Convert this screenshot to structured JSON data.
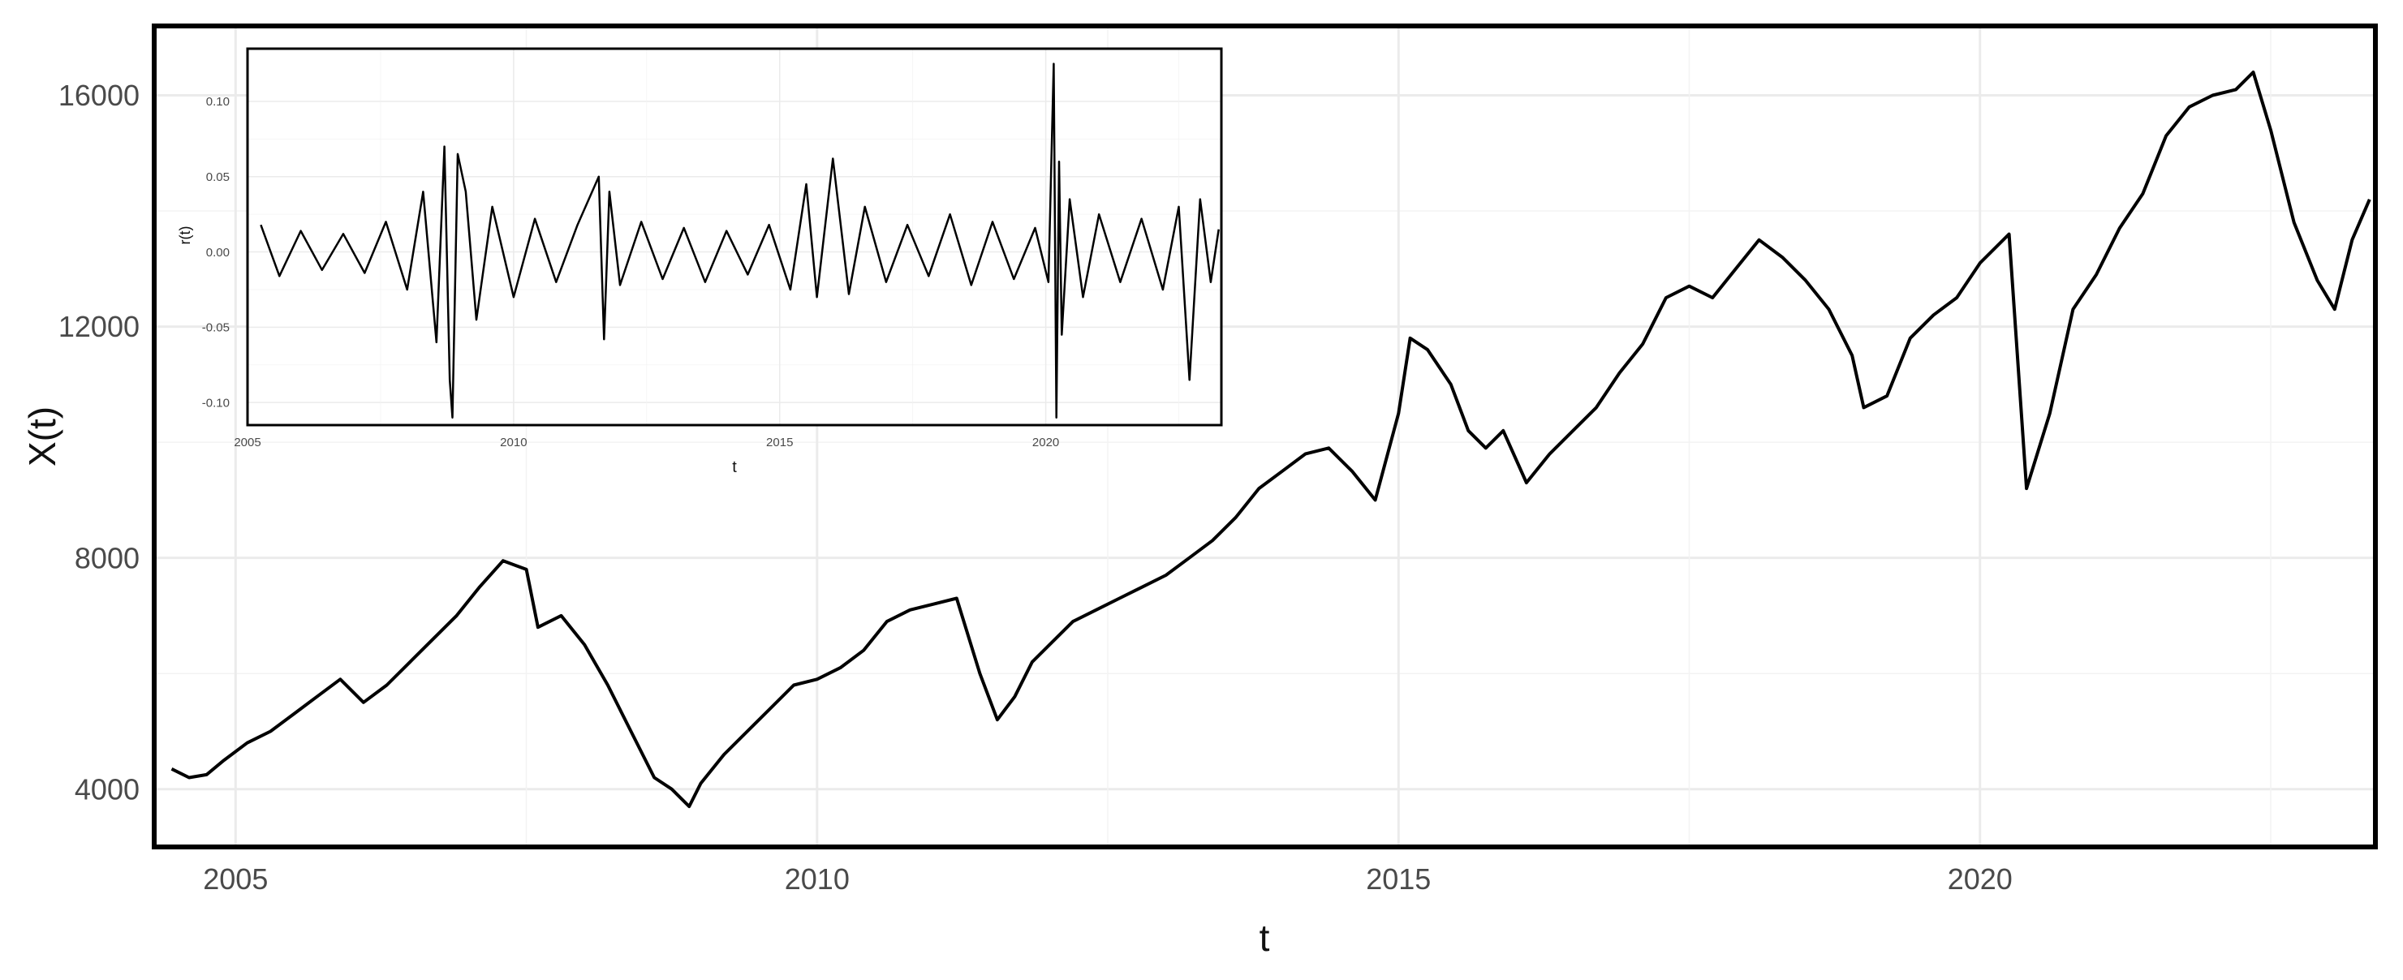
{
  "chart_data": [
    {
      "type": "line",
      "xlabel": "t",
      "ylabel": "X(t)",
      "xlim": [
        2004.3,
        2023.4
      ],
      "ylim": [
        3000,
        17200
      ],
      "xticks": [
        {
          "value": 2005,
          "label": "2005"
        },
        {
          "value": 2010,
          "label": "2010"
        },
        {
          "value": 2015,
          "label": "2015"
        },
        {
          "value": 2020,
          "label": "2020"
        }
      ],
      "yticks": [
        {
          "value": 4000,
          "label": "4000"
        },
        {
          "value": 8000,
          "label": "8000"
        },
        {
          "value": 12000,
          "label": "12000"
        },
        {
          "value": 16000,
          "label": "16000"
        }
      ],
      "grid": true,
      "series": [
        {
          "x": [
            2004.45,
            2004.6,
            2004.75,
            2004.9,
            2005.1,
            2005.3,
            2005.5,
            2005.7,
            2005.9,
            2006.1,
            2006.3,
            2006.5,
            2006.7,
            2006.9,
            2007.1,
            2007.3,
            2007.5,
            2007.6,
            2007.8,
            2008.0,
            2008.2,
            2008.4,
            2008.6,
            2008.75,
            2008.9,
            2009.0,
            2009.2,
            2009.4,
            2009.6,
            2009.8,
            2010.0,
            2010.2,
            2010.4,
            2010.6,
            2010.8,
            2011.0,
            2011.2,
            2011.4,
            2011.55,
            2011.7,
            2011.85,
            2012.0,
            2012.2,
            2012.4,
            2012.6,
            2012.8,
            2013.0,
            2013.2,
            2013.4,
            2013.6,
            2013.8,
            2014.0,
            2014.2,
            2014.4,
            2014.6,
            2014.8,
            2015.0,
            2015.1,
            2015.25,
            2015.45,
            2015.6,
            2015.75,
            2015.9,
            2016.1,
            2016.3,
            2016.5,
            2016.7,
            2016.9,
            2017.1,
            2017.3,
            2017.5,
            2017.7,
            2017.9,
            2018.1,
            2018.3,
            2018.5,
            2018.7,
            2018.9,
            2019.0,
            2019.2,
            2019.4,
            2019.6,
            2019.8,
            2020.0,
            2020.15,
            2020.25,
            2020.4,
            2020.6,
            2020.8,
            2021.0,
            2021.2,
            2021.4,
            2021.6,
            2021.8,
            2022.0,
            2022.2,
            2022.35,
            2022.5,
            2022.7,
            2022.9,
            2023.05,
            2023.2,
            2023.35
          ],
          "y": [
            4350,
            4200,
            4250,
            4500,
            4800,
            5000,
            5300,
            5600,
            5900,
            5500,
            5800,
            6200,
            6600,
            7000,
            7500,
            7950,
            7800,
            6800,
            7000,
            6500,
            5800,
            5000,
            4200,
            4000,
            3700,
            4100,
            4600,
            5000,
            5400,
            5800,
            5900,
            6100,
            6400,
            6900,
            7100,
            7200,
            7300,
            6000,
            5200,
            5600,
            6200,
            6500,
            6900,
            7100,
            7300,
            7500,
            7700,
            8000,
            8300,
            8700,
            9200,
            9500,
            9800,
            9900,
            9500,
            9000,
            10500,
            11800,
            11600,
            11000,
            10200,
            9900,
            10200,
            9300,
            9800,
            10200,
            10600,
            11200,
            11700,
            12500,
            12700,
            12500,
            13000,
            13500,
            13200,
            12800,
            12300,
            11500,
            10600,
            10800,
            11800,
            12200,
            12500,
            13100,
            13400,
            13600,
            9200,
            10500,
            12300,
            12900,
            13700,
            14300,
            15300,
            15800,
            16000,
            16100,
            16400,
            15400,
            13800,
            12800,
            12300,
            13500,
            14200
          ]
        }
      ]
    },
    {
      "type": "line",
      "xlabel": "t",
      "ylabel": "r(t)",
      "xlim": [
        2005,
        2023.3
      ],
      "ylim": [
        -0.115,
        0.135
      ],
      "xticks": [
        {
          "value": 2005,
          "label": "2005"
        },
        {
          "value": 2010,
          "label": "2010"
        },
        {
          "value": 2015,
          "label": "2015"
        },
        {
          "value": 2020,
          "label": "2020"
        }
      ],
      "yticks": [
        {
          "value": 0.1,
          "label": "0.10"
        },
        {
          "value": 0.05,
          "label": "0.05"
        },
        {
          "value": 0.0,
          "label": "0.00"
        },
        {
          "value": -0.05,
          "label": "-0.05"
        },
        {
          "value": -0.1,
          "label": "-0.10"
        }
      ],
      "grid": true,
      "series": [
        {
          "x": [
            2005.25,
            2005.6,
            2006.0,
            2006.4,
            2006.8,
            2007.2,
            2007.6,
            2008.0,
            2008.3,
            2008.55,
            2008.7,
            2008.8,
            2008.85,
            2008.95,
            2009.1,
            2009.3,
            2009.6,
            2010.0,
            2010.4,
            2010.8,
            2011.2,
            2011.6,
            2011.7,
            2011.8,
            2012.0,
            2012.4,
            2012.8,
            2013.2,
            2013.6,
            2014.0,
            2014.4,
            2014.8,
            2015.2,
            2015.5,
            2015.7,
            2016.0,
            2016.3,
            2016.6,
            2017.0,
            2017.4,
            2017.8,
            2018.2,
            2018.6,
            2019.0,
            2019.4,
            2019.8,
            2020.05,
            2020.15,
            2020.2,
            2020.25,
            2020.3,
            2020.45,
            2020.7,
            2021.0,
            2021.4,
            2021.8,
            2022.2,
            2022.5,
            2022.7,
            2022.9,
            2023.1,
            2023.25
          ],
          "y": [
            0.018,
            -0.016,
            0.014,
            -0.012,
            0.012,
            -0.014,
            0.02,
            -0.025,
            0.04,
            -0.06,
            0.07,
            -0.085,
            -0.11,
            0.065,
            0.04,
            -0.045,
            0.03,
            -0.03,
            0.022,
            -0.02,
            0.018,
            0.05,
            -0.058,
            0.04,
            -0.022,
            0.02,
            -0.018,
            0.016,
            -0.02,
            0.014,
            -0.015,
            0.018,
            -0.025,
            0.045,
            -0.03,
            0.062,
            -0.028,
            0.03,
            -0.02,
            0.018,
            -0.016,
            0.025,
            -0.022,
            0.02,
            -0.018,
            0.016,
            -0.02,
            0.125,
            -0.11,
            0.06,
            -0.055,
            0.035,
            -0.03,
            0.025,
            -0.02,
            0.022,
            -0.025,
            0.03,
            -0.085,
            0.035,
            -0.02,
            0.015
          ]
        }
      ]
    }
  ]
}
